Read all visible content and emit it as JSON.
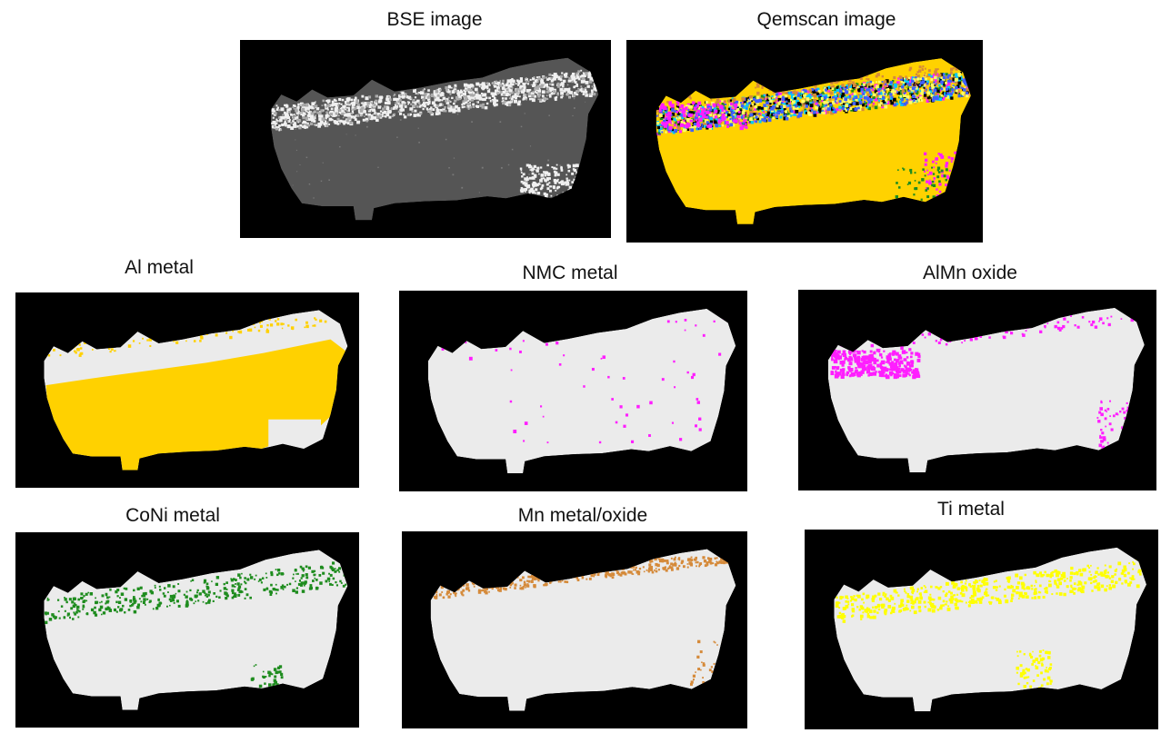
{
  "figure": {
    "panels": [
      {
        "id": "bse",
        "label": "BSE image",
        "style": "bse"
      },
      {
        "id": "qemscan",
        "label": "Qemscan image",
        "style": "qemscan"
      },
      {
        "id": "al",
        "label": "Al metal",
        "style": "map",
        "phase_color": "#FFD100"
      },
      {
        "id": "nmc",
        "label": "NMC metal",
        "style": "map",
        "phase_color": "#FF1EFF"
      },
      {
        "id": "almn",
        "label": "AlMn oxide",
        "style": "map",
        "phase_color": "#FF1EFF"
      },
      {
        "id": "coni",
        "label": "CoNi metal",
        "style": "map",
        "phase_color": "#1E8C1E"
      },
      {
        "id": "mn",
        "label": "Mn metal/oxide",
        "style": "map",
        "phase_color": "#D58A3A"
      },
      {
        "id": "ti",
        "label": "Ti metal",
        "style": "map",
        "phase_color": "#FFFF00"
      }
    ],
    "colors": {
      "background": "#000000",
      "particle": "#EBEBEB",
      "bse_dark": "#555555",
      "bse_bright": "#F0F0F0",
      "qemscan_main": "#FFD200"
    }
  }
}
